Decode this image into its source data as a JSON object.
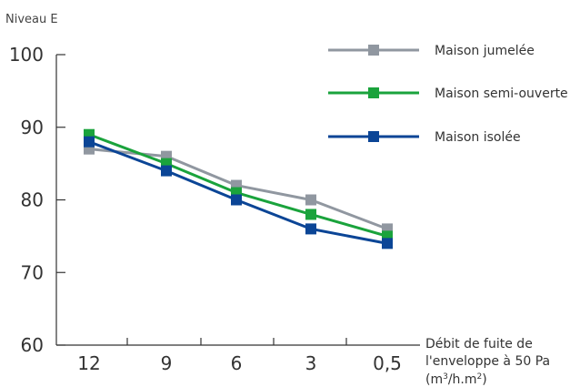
{
  "chart_data": {
    "type": "line",
    "ylabel": "Niveau E",
    "xlabel_lines": [
      "Débit de fuite de",
      "l'enveloppe à 50 Pa"
    ],
    "xlabel_unit": {
      "base": "(m",
      "sup1": "3",
      "mid": "/h.m",
      "sup2": "2",
      "end": ")"
    },
    "categories": [
      "12",
      "9",
      "6",
      "3",
      "0,5"
    ],
    "ylim": [
      60,
      100
    ],
    "yticks": [
      60,
      70,
      80,
      90,
      100
    ],
    "grid": false,
    "legend_position": "top-right",
    "series": [
      {
        "name": "Maison jumelée",
        "color": "#9097a0",
        "values": [
          87,
          86,
          82,
          80,
          76
        ]
      },
      {
        "name": "Maison semi-ouverte",
        "color": "#1aa33c",
        "values": [
          89,
          85,
          81,
          78,
          75
        ]
      },
      {
        "name": "Maison isolée",
        "color": "#0b4596",
        "values": [
          88,
          84,
          80,
          76,
          74
        ]
      }
    ]
  }
}
